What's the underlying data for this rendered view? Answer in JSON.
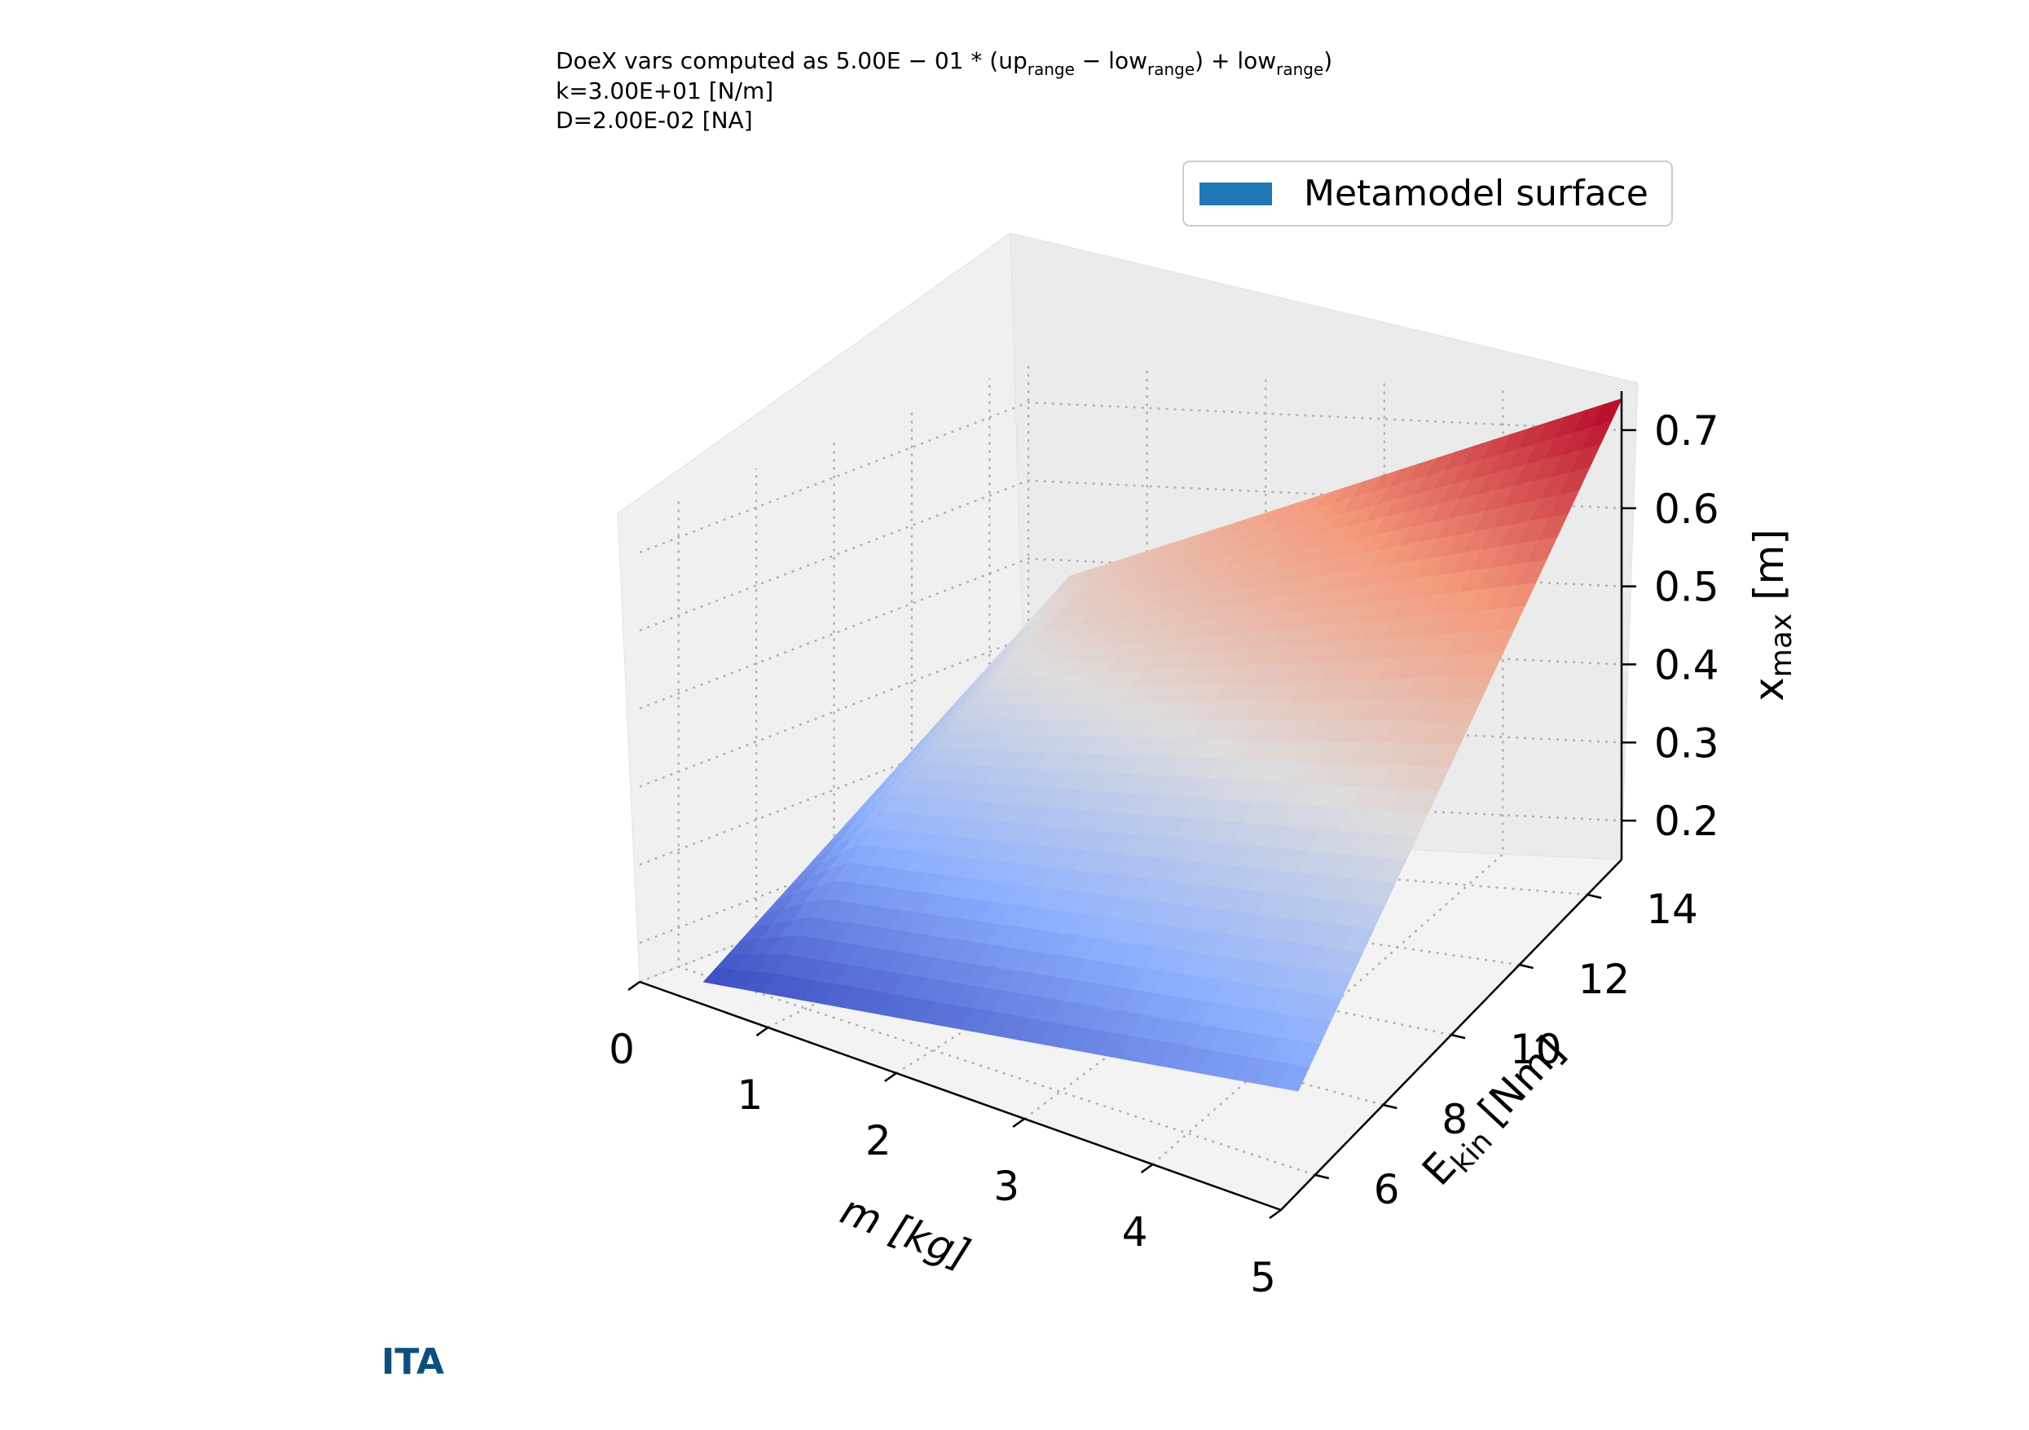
{
  "annotations": {
    "line1_prefix": "DoeX vars computed as 5.00E − 01 * (up",
    "line1_sub1": "range",
    "line1_mid": " − low",
    "line1_sub2": "range",
    "line1_end": ") + low",
    "line1_sub3": "range",
    "line1_close": ")",
    "line2": "k=3.00E+01 [N/m]",
    "line3": "D=2.00E-02 [NA]"
  },
  "logo_text": "ITA",
  "colors": {
    "surface_low": "#3b4cc0",
    "surface_mid": "#dddddd",
    "surface_high": "#b40426",
    "legend_patch": "#1f77b4",
    "logo": "#0d4f7c"
  },
  "chart_data": {
    "type": "surface",
    "legend": {
      "entries": [
        "Metamodel surface"
      ],
      "placement": "top-right"
    },
    "xlabel": "m [kg]",
    "ylabel_main": "E",
    "ylabel_sub": "kin",
    "ylabel_unit": " [Nm]",
    "zlabel_main": "x",
    "zlabel_sub": "max",
    "zlabel_unit": " [m]",
    "xlim": [
      0,
      5
    ],
    "ylim": [
      5,
      15
    ],
    "zlim": [
      0.15,
      0.75
    ],
    "x_ticks": [
      "0",
      "1",
      "2",
      "3",
      "4",
      "5"
    ],
    "y_ticks": [
      "6",
      "8",
      "10",
      "12",
      "14"
    ],
    "z_ticks": [
      "0.2",
      "0.3",
      "0.4",
      "0.5",
      "0.6",
      "0.7"
    ],
    "x_tick_values": [
      0,
      1,
      2,
      3,
      4,
      5
    ],
    "y_tick_values": [
      6,
      8,
      10,
      12,
      14
    ],
    "z_tick_values": [
      0.2,
      0.3,
      0.4,
      0.5,
      0.6,
      0.7
    ],
    "grid": true,
    "colormap": "coolwarm",
    "surface_corners": [
      {
        "m": 0.35,
        "E": 5.5,
        "xmax": 0.16
      },
      {
        "m": 5,
        "E": 5.5,
        "xmax": 0.28
      },
      {
        "m": 0.35,
        "E": 15,
        "xmax": 0.48
      },
      {
        "m": 5,
        "E": 15,
        "xmax": 0.74
      }
    ]
  }
}
